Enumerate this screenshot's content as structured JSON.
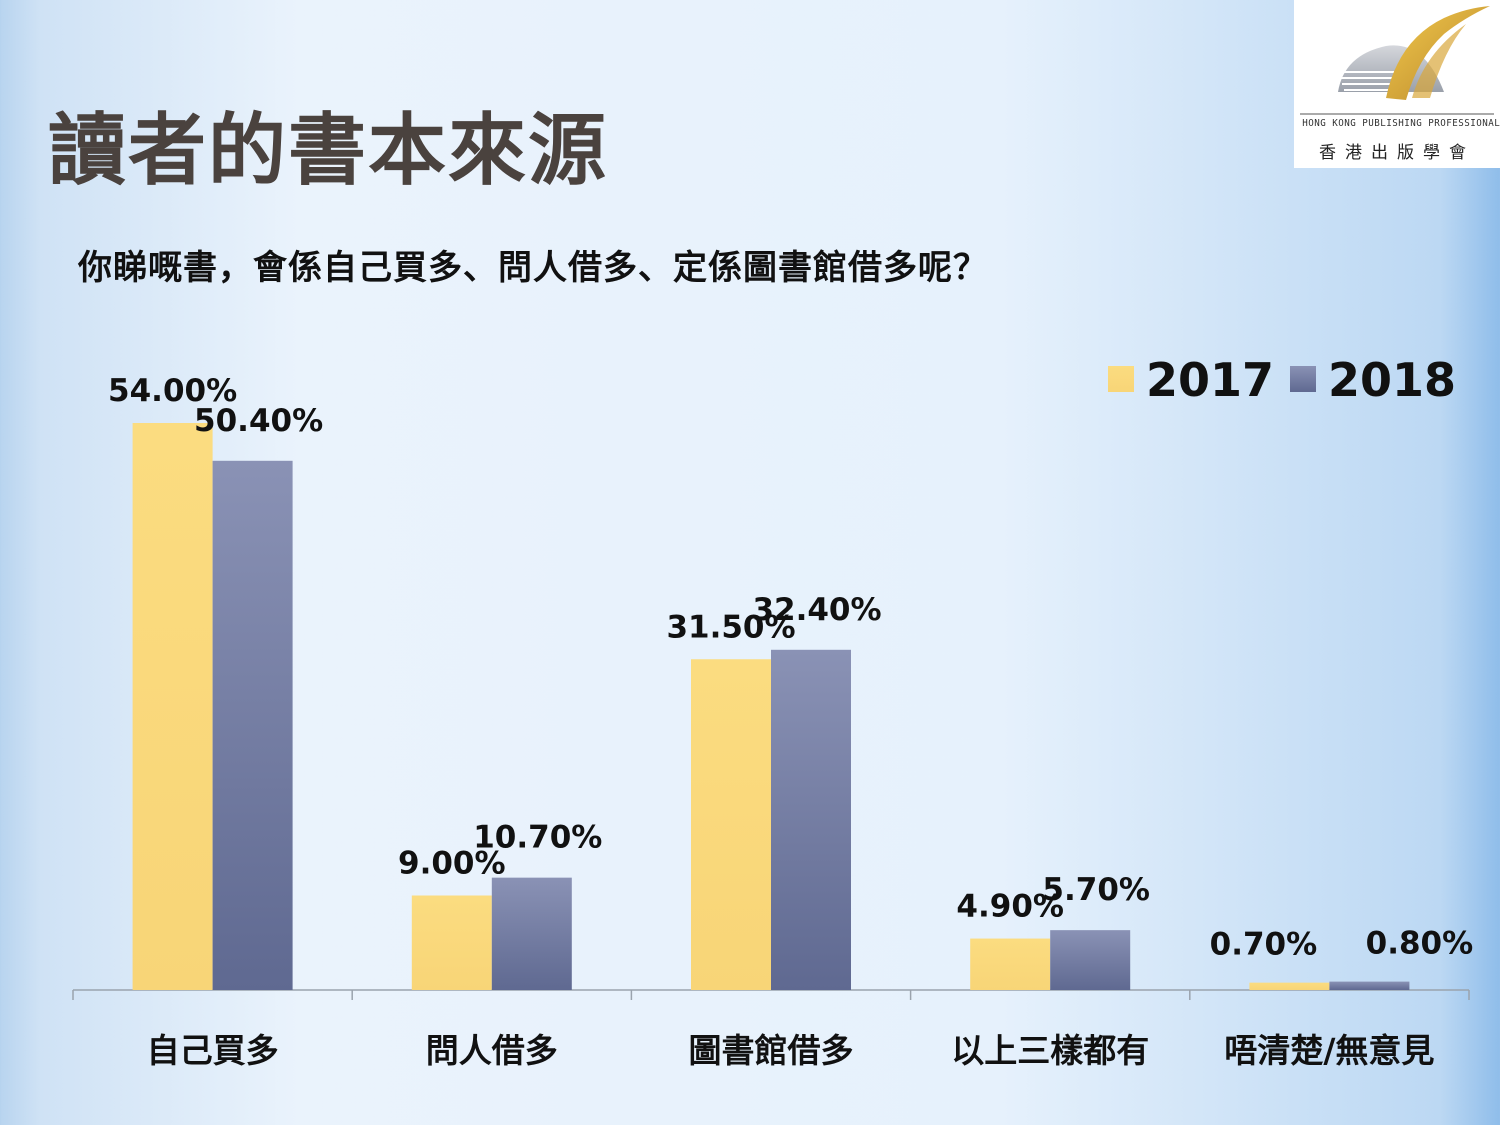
{
  "slide": {
    "title": "讀者的書本來源",
    "question": "你睇嘅書，會係自己買多、問人借多、定係圖書館借多呢？"
  },
  "logo": {
    "english": "HONG KONG PUBLISHING PROFESSIONALS SOCIETY",
    "chinese": "香港出版學會"
  },
  "chart_data": {
    "type": "bar",
    "categories": [
      "自己買多",
      "問人借多",
      "圖書館借多",
      "以上三樣都有",
      "唔清楚/無意見"
    ],
    "series": [
      {
        "name": "2017",
        "values": [
          54.0,
          9.0,
          31.5,
          4.9,
          0.7
        ],
        "labels": [
          "54.00%",
          "9.00%",
          "31.50%",
          "4.90%",
          "0.70%"
        ],
        "color": "#fad97c"
      },
      {
        "name": "2018",
        "values": [
          50.4,
          10.7,
          32.4,
          5.7,
          0.8
        ],
        "labels": [
          "50.40%",
          "10.70%",
          "32.40%",
          "5.70%",
          "0.80%"
        ],
        "color": "#7580a6"
      }
    ],
    "unit": "%",
    "ylim": [
      0,
      54
    ],
    "grid": false,
    "legend": "top-right"
  }
}
